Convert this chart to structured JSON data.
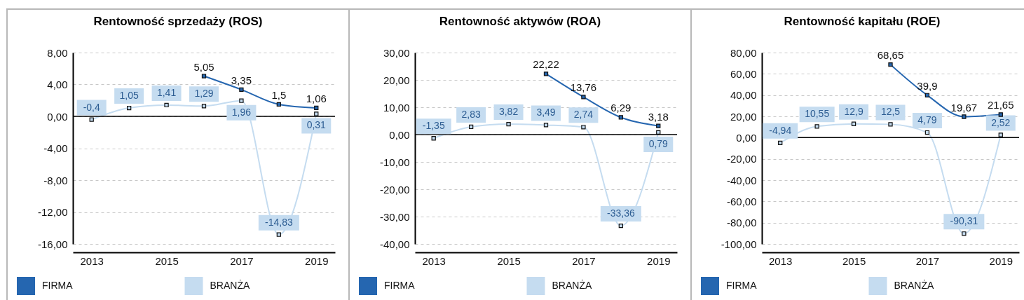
{
  "chart_data": [
    {
      "type": "line",
      "title": "Rentowność sprzedaży (ROS)",
      "x": [
        2013,
        2014,
        2015,
        2016,
        2017,
        2018,
        2019
      ],
      "xlim": [
        2012.5,
        2019.5
      ],
      "xticks": [
        2013,
        2015,
        2017,
        2019
      ],
      "ylim": [
        -16,
        8
      ],
      "yticks": [
        {
          "value": -16,
          "label": "-16,00"
        },
        {
          "value": -12,
          "label": "-12,00"
        },
        {
          "value": -8,
          "label": "-8,00"
        },
        {
          "value": -4,
          "label": "-4,00"
        },
        {
          "value": 0,
          "label": "0,00"
        },
        {
          "value": 4,
          "label": "4,00"
        },
        {
          "value": 8,
          "label": "8,00"
        }
      ],
      "grid": "y",
      "legend": "bottom",
      "marker": "square",
      "ref_lines": [
        {
          "axis": "y",
          "value": 0,
          "color": "#000000"
        }
      ],
      "series": [
        {
          "name": "FIRMA",
          "color": "#2566b0",
          "values": [
            null,
            null,
            null,
            5.05,
            3.35,
            1.5,
            1.06
          ],
          "value_labels": [
            null,
            null,
            null,
            "5,05",
            "3,35",
            "1,5",
            "1,06"
          ]
        },
        {
          "name": "BRANŻA",
          "color": "#c5dcf0",
          "values": [
            -0.4,
            1.05,
            1.41,
            1.29,
            1.96,
            -14.83,
            0.31
          ],
          "value_labels": [
            "-0,4",
            "1,05",
            "1,41",
            "1,29",
            "1,96",
            "-14,83",
            "0,31"
          ]
        }
      ]
    },
    {
      "type": "line",
      "title": "Rentowność aktywów (ROA)",
      "x": [
        2013,
        2014,
        2015,
        2016,
        2017,
        2018,
        2019
      ],
      "xlim": [
        2012.5,
        2019.5
      ],
      "xticks": [
        2013,
        2015,
        2017,
        2019
      ],
      "ylim": [
        -40,
        30
      ],
      "yticks": [
        {
          "value": -40,
          "label": "-40,00"
        },
        {
          "value": -30,
          "label": "-30,00"
        },
        {
          "value": -20,
          "label": "-20,00"
        },
        {
          "value": -10,
          "label": "-10,00"
        },
        {
          "value": 0,
          "label": "0,00"
        },
        {
          "value": 10,
          "label": "10,00"
        },
        {
          "value": 20,
          "label": "20,00"
        },
        {
          "value": 30,
          "label": "30,00"
        }
      ],
      "grid": "y",
      "legend": "bottom",
      "marker": "square",
      "ref_lines": [
        {
          "axis": "y",
          "value": 0,
          "color": "#000000"
        }
      ],
      "series": [
        {
          "name": "FIRMA",
          "color": "#2566b0",
          "values": [
            null,
            null,
            null,
            22.22,
            13.76,
            6.29,
            3.18
          ],
          "value_labels": [
            null,
            null,
            null,
            "22,22",
            "13,76",
            "6,29",
            "3,18"
          ]
        },
        {
          "name": "BRANŻA",
          "color": "#c5dcf0",
          "values": [
            -1.35,
            2.83,
            3.82,
            3.49,
            2.74,
            -33.36,
            0.79
          ],
          "value_labels": [
            "-1,35",
            "2,83",
            "3,82",
            "3,49",
            "2,74",
            "-33,36",
            "0,79"
          ]
        }
      ]
    },
    {
      "type": "line",
      "title": "Rentowność kapitału (ROE)",
      "x": [
        2013,
        2014,
        2015,
        2016,
        2017,
        2018,
        2019
      ],
      "xlim": [
        2012.5,
        2019.5
      ],
      "xticks": [
        2013,
        2015,
        2017,
        2019
      ],
      "ylim": [
        -100,
        80
      ],
      "yticks": [
        {
          "value": -100,
          "label": "-100,00"
        },
        {
          "value": -80,
          "label": "-80,00"
        },
        {
          "value": -60,
          "label": "-60,00"
        },
        {
          "value": -40,
          "label": "-40,00"
        },
        {
          "value": -20,
          "label": "-20,00"
        },
        {
          "value": 0,
          "label": "0,00"
        },
        {
          "value": 20,
          "label": "20,00"
        },
        {
          "value": 40,
          "label": "40,00"
        },
        {
          "value": 60,
          "label": "60,00"
        },
        {
          "value": 80,
          "label": "80,00"
        }
      ],
      "grid": "y",
      "legend": "bottom",
      "marker": "square",
      "ref_lines": [
        {
          "axis": "y",
          "value": 0,
          "color": "#000000"
        }
      ],
      "series": [
        {
          "name": "FIRMA",
          "color": "#2566b0",
          "values": [
            null,
            null,
            null,
            68.65,
            39.9,
            19.67,
            21.65
          ],
          "value_labels": [
            null,
            null,
            null,
            "68,65",
            "39,9",
            "19,67",
            "21,65"
          ]
        },
        {
          "name": "BRANŻA",
          "color": "#c5dcf0",
          "values": [
            -4.94,
            10.55,
            12.9,
            12.5,
            4.79,
            -90.31,
            2.52
          ],
          "value_labels": [
            "-4,94",
            "10,55",
            "12,9",
            "12,5",
            "4,79",
            "-90,31",
            "2,52"
          ]
        }
      ]
    }
  ]
}
